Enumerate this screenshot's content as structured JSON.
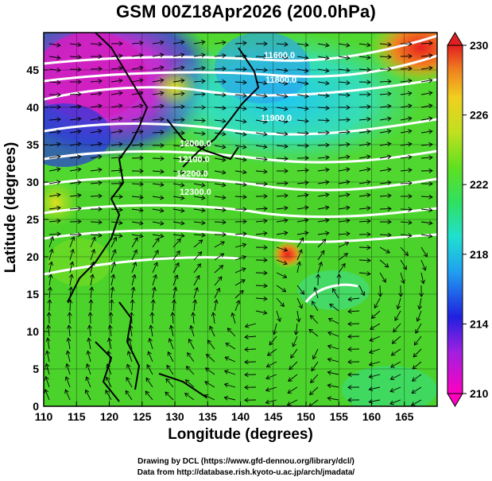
{
  "title": "GSM 00Z18Apr2026 (200.0hPa)",
  "xlabel": "Longitude (degrees)",
  "ylabel": "Latitude  (degrees)",
  "x_ticks": [
    "110",
    "115",
    "120",
    "125",
    "130",
    "135",
    "140",
    "145",
    "150",
    "155",
    "160",
    "165"
  ],
  "y_ticks": [
    "0",
    "5",
    "10",
    "15",
    "20",
    "25",
    "30",
    "35",
    "40",
    "45"
  ],
  "colorbar": {
    "ticks": [
      "230",
      "226",
      "222",
      "218",
      "214",
      "210"
    ],
    "range": [
      210,
      230
    ]
  },
  "contour_labels": [
    "11600.0",
    "11800.0",
    "11900.0",
    "12000.0",
    "12100.0",
    "12200.0",
    "12300.0"
  ],
  "credit_line1": "Drawing by DCL (https://www.gfd-dennou.org/library/dcl/)",
  "credit_line2": "Data from http://database.rish.kyoto-u.ac.jp/arch/jmadata/",
  "colors": {
    "magenta": "#e020c0",
    "blue": "#2020e0",
    "cyan": "#20d0e0",
    "green": "#40d020",
    "yellow": "#e0e020",
    "orange": "#f08020",
    "red": "#e02020"
  }
}
